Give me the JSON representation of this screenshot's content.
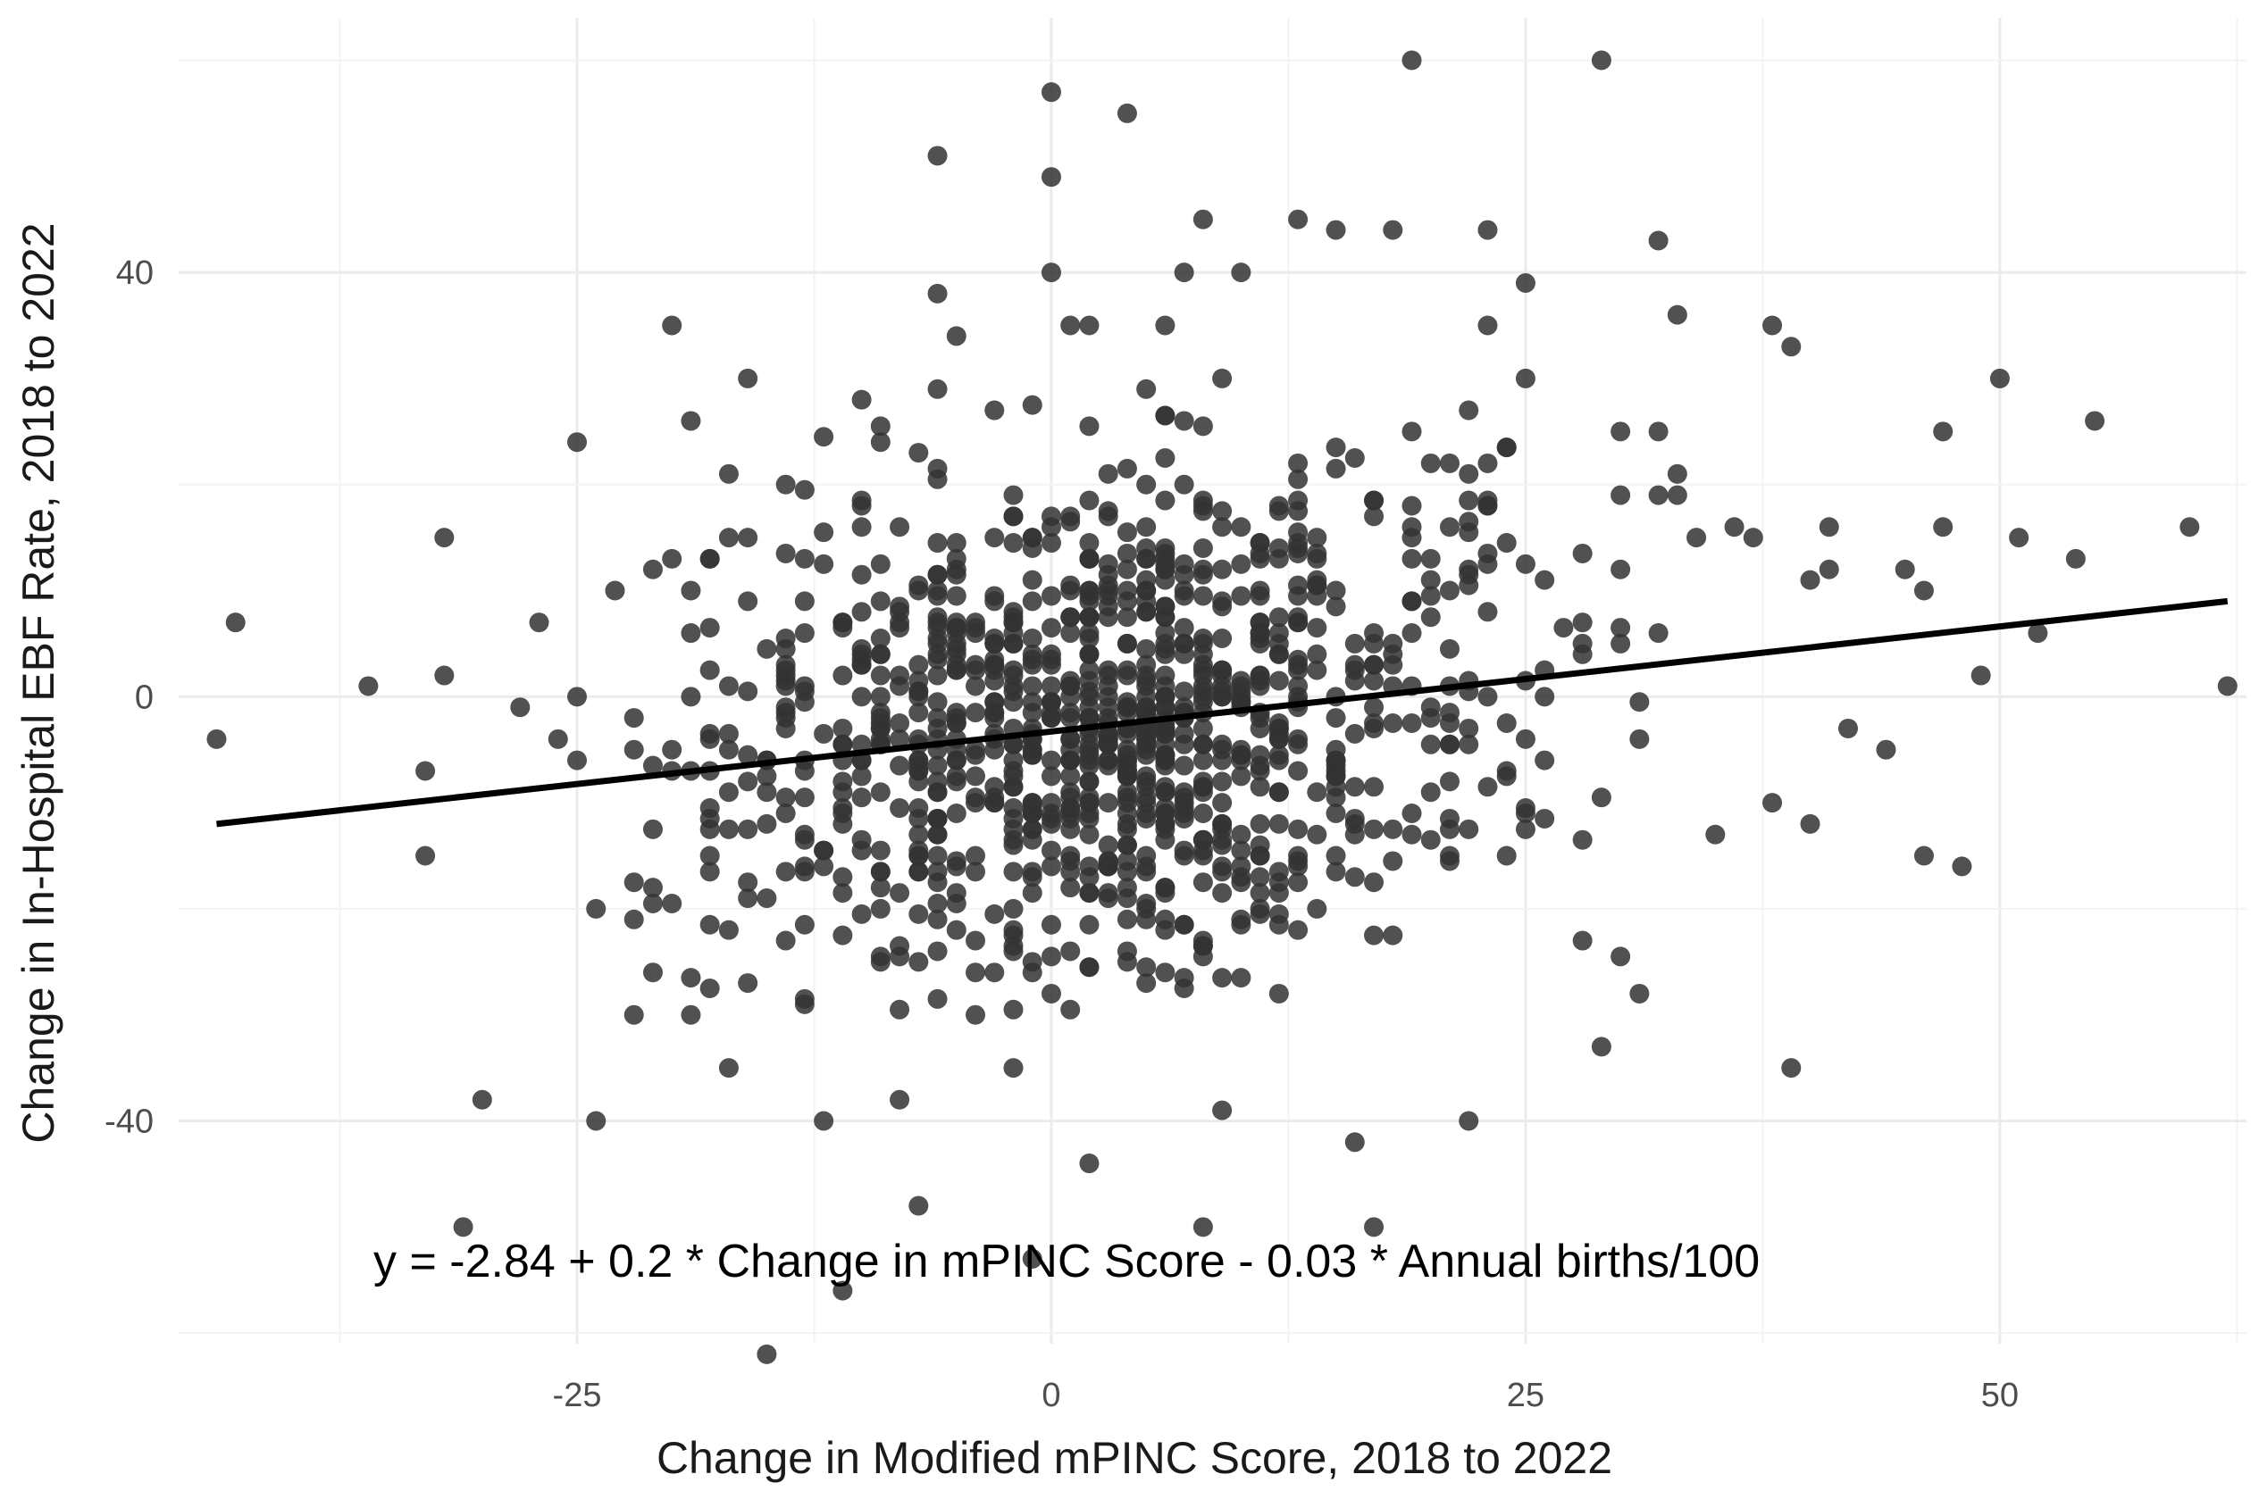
{
  "chart_data": {
    "type": "scatter",
    "xlabel": "Change in Modified mPINC Score, 2018 to 2022",
    "ylabel": "Change in In-Hospital EBF Rate, 2018 to 2022",
    "annotation": "y = -2.84 + 0.2 * Change in mPINC Score - 0.03 * Annual births/100",
    "xlim": [
      -46,
      63
    ],
    "ylim": [
      -61,
      64
    ],
    "x_ticks": [
      -25,
      0,
      25,
      50
    ],
    "x_tick_labels": [
      "-25",
      "0",
      "25",
      "50"
    ],
    "y_ticks": [
      -40,
      0,
      40
    ],
    "y_tick_labels": [
      "-40",
      "0",
      "40"
    ],
    "grid": true,
    "point_color": "#333333",
    "trend_color": "#000000",
    "trend_line": {
      "x": [
        -44,
        62
      ],
      "y": [
        -12,
        9
      ]
    },
    "outliers": {
      "x": [
        -44,
        -43,
        -36,
        -33,
        -33,
        -32,
        -32,
        -31,
        -30,
        -28,
        -27,
        -26,
        -25,
        -25,
        -25,
        -24,
        -24,
        -23,
        -22,
        -22,
        -21,
        -21,
        -20,
        -20,
        -19,
        -19,
        -18,
        -18,
        -17,
        -17,
        -17,
        -16,
        -16,
        -16,
        -15,
        -14,
        -14,
        -13,
        -12,
        -12,
        -11,
        -10,
        -8,
        -7,
        -6,
        -6,
        -6,
        -5,
        -4,
        -3,
        -2,
        -1,
        0,
        0,
        0,
        1,
        2,
        2,
        4,
        5,
        6,
        7,
        8,
        8,
        9,
        9,
        10,
        12,
        12,
        13,
        15,
        16,
        17,
        18,
        19,
        19,
        19,
        21,
        22,
        22,
        23,
        23,
        24,
        25,
        25,
        26,
        28,
        29,
        29,
        30,
        30,
        31,
        32,
        32,
        33,
        33,
        34,
        36,
        37,
        38,
        38,
        39,
        39,
        40,
        40,
        41,
        41,
        42,
        44,
        45,
        46,
        46,
        47,
        47,
        48,
        49,
        50,
        51,
        52,
        54,
        55,
        60,
        62
      ],
      "y": [
        -4,
        7,
        1,
        -7,
        -15,
        15,
        2,
        -50,
        -38,
        -1,
        7,
        -4,
        -6,
        24,
        0,
        -20,
        -40,
        10,
        -2,
        -5,
        -26,
        12,
        -5,
        35,
        26,
        6,
        13,
        -15,
        21,
        -35,
        -5,
        30,
        15,
        -27,
        -62,
        2,
        20,
        1,
        -40,
        -16,
        -56,
        28,
        -38,
        -48,
        51,
        38,
        29,
        34,
        -30,
        27,
        -35,
        -53,
        57,
        49,
        40,
        35,
        35,
        -44,
        55,
        29,
        35,
        40,
        -50,
        45,
        30,
        -39,
        40,
        5,
        -28,
        45,
        44,
        -42,
        -50,
        44,
        60,
        18,
        25,
        22,
        -40,
        27,
        44,
        35,
        -15,
        39,
        30,
        11,
        -23,
        60,
        -33,
        25,
        19,
        -28,
        43,
        25,
        36,
        21,
        15,
        16,
        15,
        -10,
        35,
        33,
        -35,
        11,
        -12,
        12,
        16,
        -3,
        -5,
        12,
        10,
        -15,
        25,
        16,
        -16,
        2,
        30,
        15,
        6,
        13,
        26,
        16,
        1
      ]
    },
    "dense_cloud": {
      "n": 1050,
      "x_center": 3,
      "x_sd": 11,
      "y_center": -3,
      "y_sd": 12
    }
  }
}
